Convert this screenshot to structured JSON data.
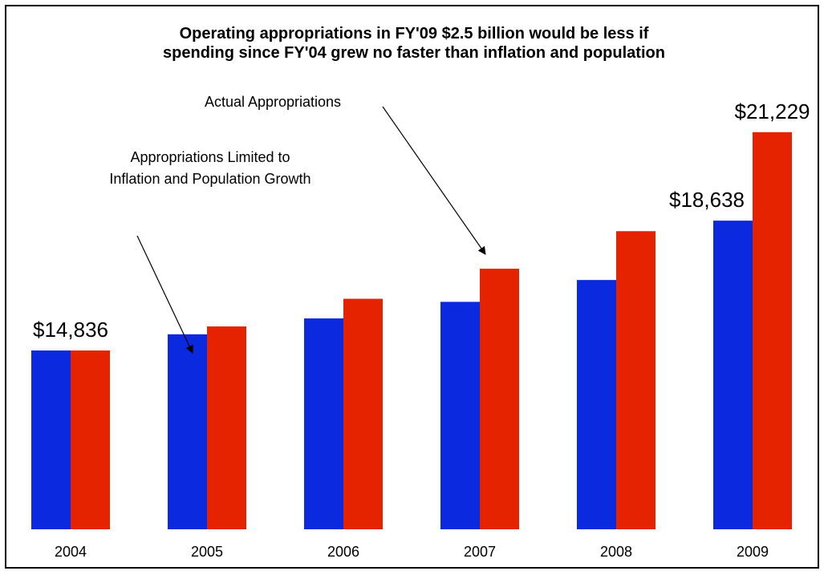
{
  "chart_data": {
    "type": "bar",
    "title_lines": [
      "Operating appropriations in FY'09 $2.5 billion would be less if",
      "spending since FY'04 grew no faster than inflation and population"
    ],
    "categories": [
      "2004",
      "2005",
      "2006",
      "2007",
      "2008",
      "2009"
    ],
    "series": [
      {
        "name": "Appropriations Limited to Inflation and Population Growth",
        "color": "#0b29de",
        "values": [
          14836,
          15310,
          15775,
          16260,
          16900,
          18638
        ]
      },
      {
        "name": "Actual Appropriations",
        "color": "#e52300",
        "values": [
          14836,
          15540,
          16350,
          17230,
          18330,
          21229
        ]
      }
    ],
    "ylim": [
      9600,
      21600
    ],
    "grid": false,
    "legend": "none",
    "data_labels": [
      {
        "series": 0,
        "index": 0,
        "text": "$14,836"
      },
      {
        "series": 0,
        "index": 5,
        "text": "$18,638"
      },
      {
        "series": 1,
        "index": 5,
        "text": "$21,229"
      }
    ],
    "annotations": {
      "actual_label": "Actual Appropriations",
      "limited_label_lines": [
        "Appropriations Limited to",
        "Inflation and Population Growth"
      ]
    }
  }
}
